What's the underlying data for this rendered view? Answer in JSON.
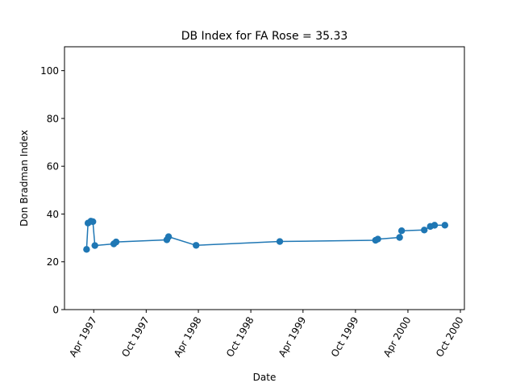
{
  "chart_data": {
    "type": "line",
    "title": "DB Index for FA Rose = 35.33",
    "xlabel": "Date",
    "ylabel": "Don Bradman Index",
    "xlim": [
      "1996-12-20",
      "2000-10-15"
    ],
    "ylim": [
      0,
      110
    ],
    "x_ticks": [
      {
        "date": "1997-04-01",
        "label": "Apr 1997"
      },
      {
        "date": "1997-10-01",
        "label": "Oct 1997"
      },
      {
        "date": "1998-04-01",
        "label": "Apr 1998"
      },
      {
        "date": "1998-10-01",
        "label": "Oct 1998"
      },
      {
        "date": "1999-04-01",
        "label": "Apr 1999"
      },
      {
        "date": "1999-10-01",
        "label": "Oct 1999"
      },
      {
        "date": "2000-04-01",
        "label": "Apr 2000"
      },
      {
        "date": "2000-10-01",
        "label": "Oct 2000"
      }
    ],
    "y_ticks": [
      0,
      20,
      40,
      60,
      80,
      100
    ],
    "grid": false,
    "color": "#1f77b4",
    "series": [
      {
        "points": [
          {
            "x": "1997-03-07",
            "y": 25.2
          },
          {
            "x": "1997-03-12",
            "y": 36.2
          },
          {
            "x": "1997-03-22",
            "y": 37.0
          },
          {
            "x": "1997-03-29",
            "y": 36.8
          },
          {
            "x": "1997-04-05",
            "y": 26.8
          },
          {
            "x": "1997-06-10",
            "y": 27.5
          },
          {
            "x": "1997-06-18",
            "y": 28.3
          },
          {
            "x": "1997-12-12",
            "y": 29.2
          },
          {
            "x": "1997-12-18",
            "y": 30.5
          },
          {
            "x": "1998-03-24",
            "y": 26.9
          },
          {
            "x": "1999-01-10",
            "y": 28.5
          },
          {
            "x": "1999-12-10",
            "y": 29.0
          },
          {
            "x": "1999-12-18",
            "y": 29.5
          },
          {
            "x": "2000-03-03",
            "y": 30.2
          },
          {
            "x": "2000-03-10",
            "y": 33.0
          },
          {
            "x": "2000-05-28",
            "y": 33.3
          },
          {
            "x": "2000-06-18",
            "y": 34.8
          },
          {
            "x": "2000-07-03",
            "y": 35.3
          },
          {
            "x": "2000-08-08",
            "y": 35.33
          }
        ]
      }
    ]
  }
}
